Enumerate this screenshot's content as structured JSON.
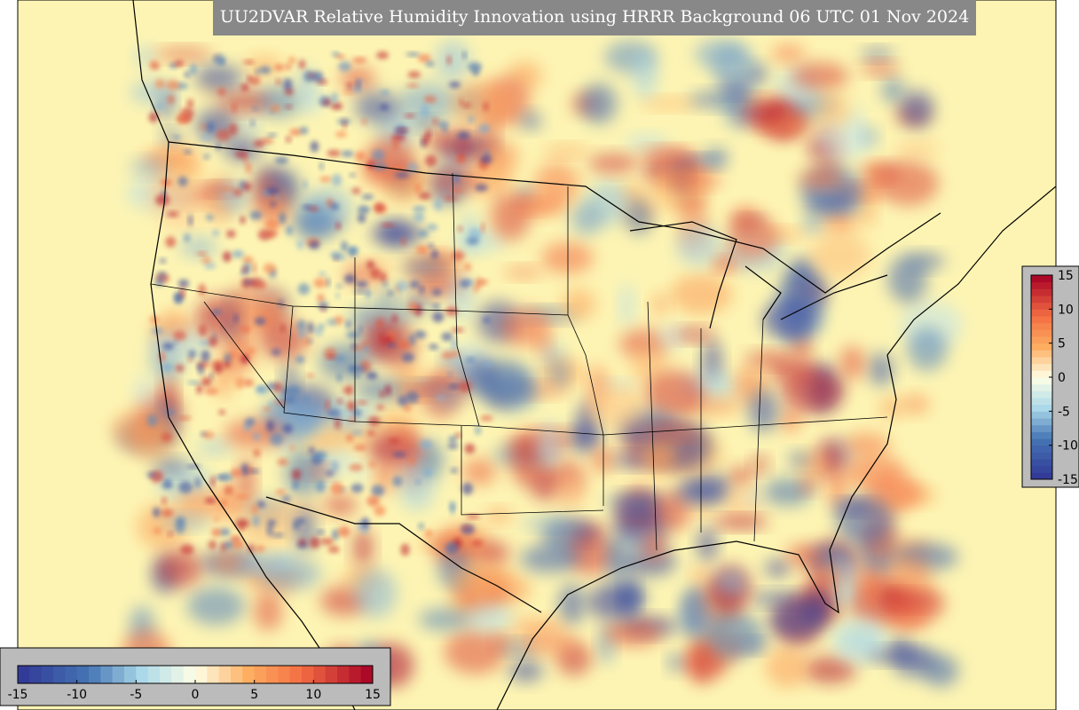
{
  "title": "UU2DVAR Relative Humidity Innovation using HRRR Background 06 UTC 01 Nov 2024",
  "colorbars": [
    {
      "orientation": "horizontal",
      "range": [
        -15,
        15
      ],
      "ticks": [
        -15,
        -10,
        -5,
        0,
        5,
        10,
        15
      ]
    },
    {
      "orientation": "vertical",
      "range": [
        -15,
        15
      ],
      "ticks": [
        -15,
        -10,
        -5,
        0,
        5,
        10,
        15
      ]
    }
  ]
}
